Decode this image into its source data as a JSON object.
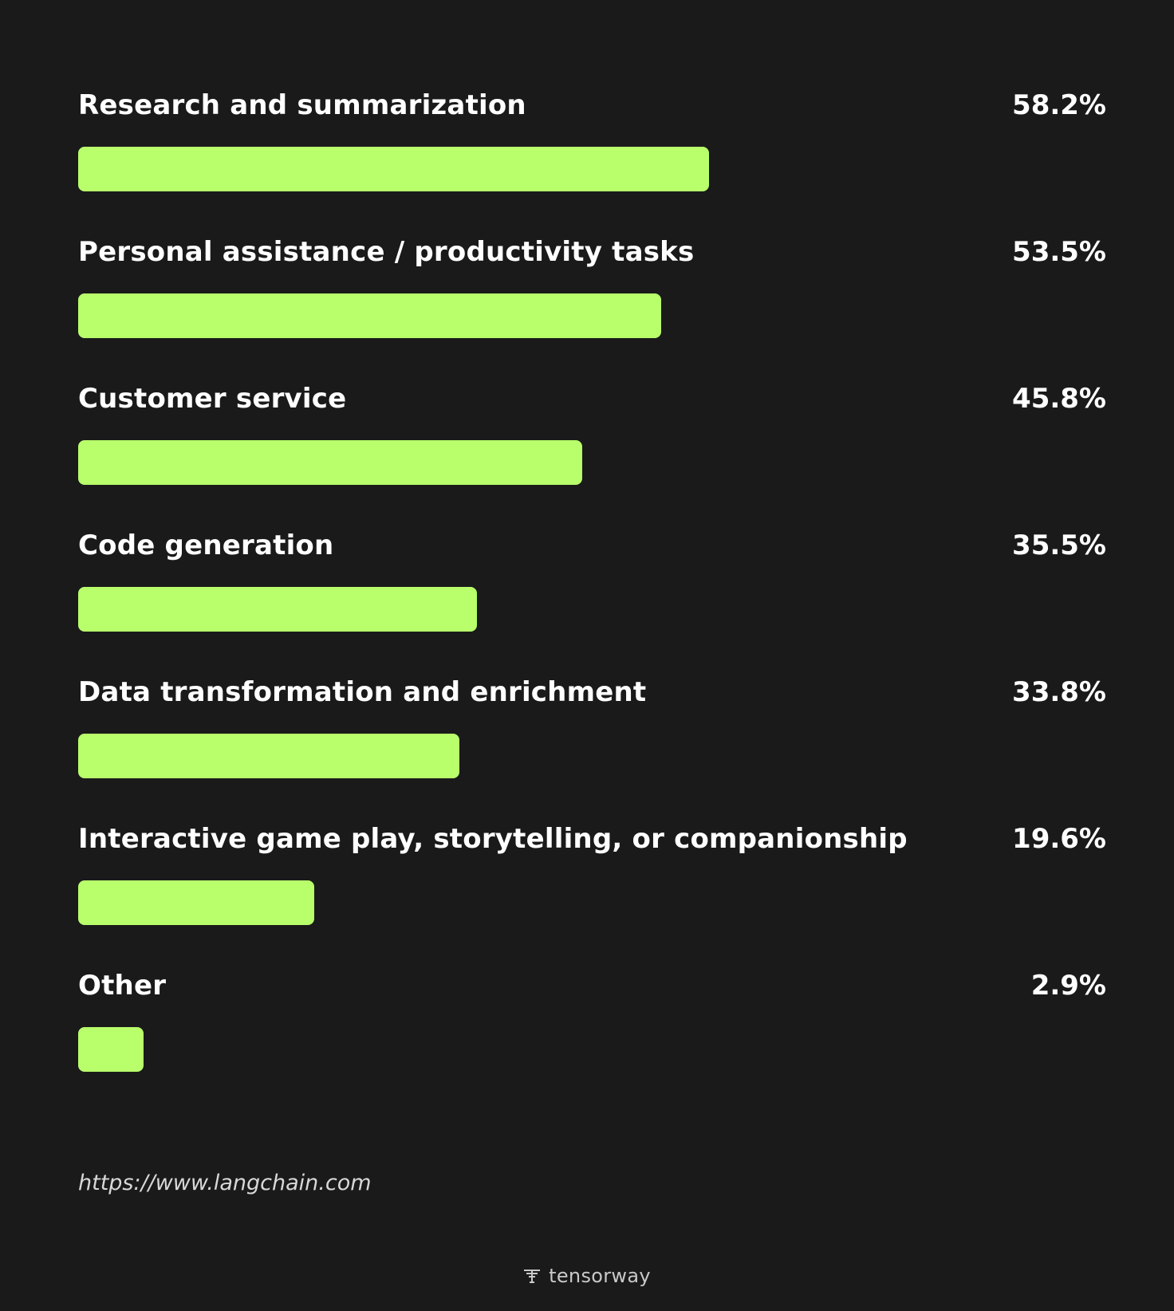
{
  "chart_data": {
    "type": "bar",
    "orientation": "horizontal",
    "categories": [
      "Research and summarization",
      "Personal assistance / productivity tasks",
      "Customer service",
      "Code generation",
      "Data transformation and enrichment",
      "Interactive game play, storytelling, or companionship",
      "Other"
    ],
    "values": [
      58.2,
      53.5,
      45.8,
      35.5,
      33.8,
      19.6,
      2.9
    ],
    "value_labels": [
      "58.2%",
      "53.5%",
      "45.8%",
      "35.5%",
      "33.8%",
      "19.6%",
      "2.9%"
    ],
    "xlim": [
      -3.5,
      97
    ],
    "bar_color": "#b8ff6b",
    "grid": false,
    "legend": "none"
  },
  "source_text": "https://www.langchain.com",
  "brand": {
    "name": "tensorway",
    "icon": "tensorway-logo-icon"
  },
  "colors": {
    "background": "#1a1a1a",
    "bar": "#b8ff6b",
    "text": "#ffffff"
  }
}
